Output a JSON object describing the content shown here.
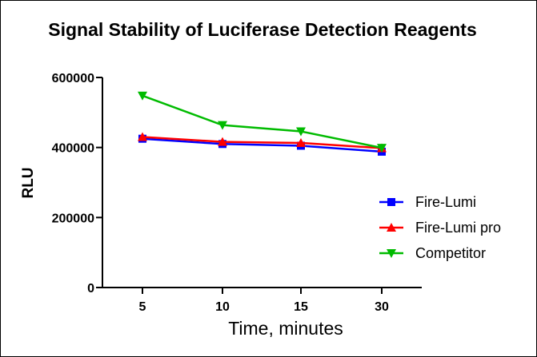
{
  "chart_data": {
    "type": "line",
    "title": "Signal Stability of Luciferase Detection Reagents",
    "xlabel": "Time, minutes",
    "ylabel": "RLU",
    "categories": [
      "5",
      "10",
      "15",
      "30"
    ],
    "y_ticks": [
      "0",
      "200000",
      "400000",
      "600000"
    ],
    "ylim": [
      0,
      600000
    ],
    "grid": false,
    "legend_position": "right",
    "series": [
      {
        "name": "Fire-Lumi",
        "color": "#0000ff",
        "marker": "square",
        "values": [
          425000,
          410000,
          405000,
          388000
        ]
      },
      {
        "name": "Fire-Lumi pro",
        "color": "#ff0000",
        "marker": "triangle-up",
        "values": [
          430000,
          416000,
          413000,
          398000
        ]
      },
      {
        "name": "Competitor",
        "color": "#00bb00",
        "marker": "triangle-down",
        "values": [
          548000,
          464000,
          446000,
          399000
        ]
      }
    ]
  }
}
